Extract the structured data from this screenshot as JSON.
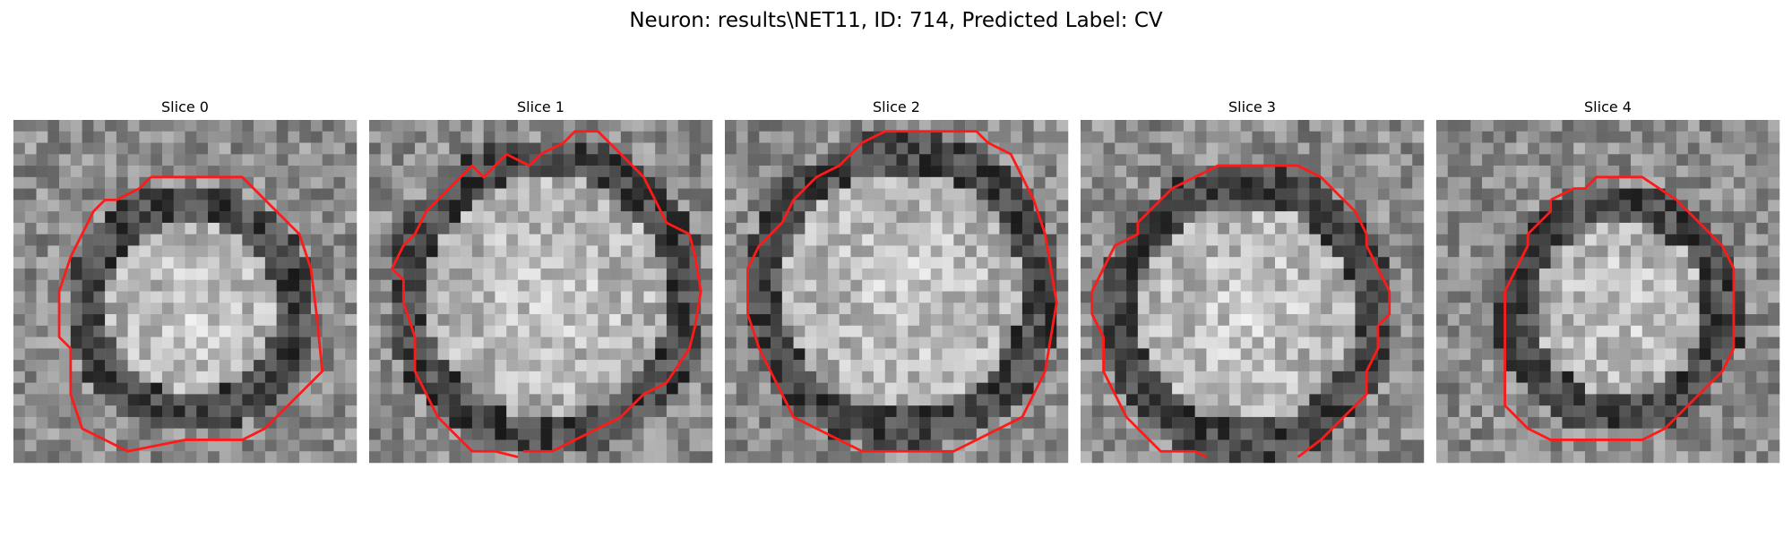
{
  "figure": {
    "title": "Neuron: results\\NET11, ID: 714, Predicted Label: CV"
  },
  "panels": [
    {
      "title": "Slice 0"
    },
    {
      "title": "Slice 1"
    },
    {
      "title": "Slice 2"
    },
    {
      "title": "Slice 3"
    },
    {
      "title": "Slice 4"
    }
  ],
  "colors": {
    "contour": "#ff1a1a",
    "background": "#ffffff"
  }
}
